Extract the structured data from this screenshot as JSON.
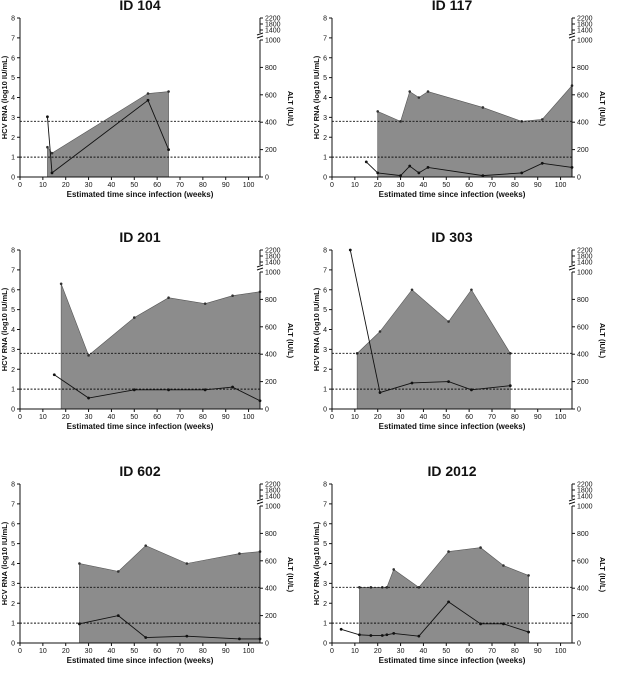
{
  "chart_data": [
    {
      "type": "area",
      "title": "ID 104",
      "xlabel": "Estimated time since infection (weeks)",
      "ylabel_left": "HCV RNA (log10 IU/mL)",
      "ylabel_right": "ALT (IU/L)",
      "xlim": [
        0,
        105
      ],
      "xticks": [
        0,
        10,
        20,
        30,
        40,
        50,
        60,
        70,
        80,
        90,
        100
      ],
      "ylim_left": [
        0,
        8
      ],
      "yticks_left": [
        0,
        1,
        2,
        3,
        4,
        5,
        6,
        7,
        8
      ],
      "yticks_right": [
        0,
        200,
        400,
        600,
        800,
        1000,
        1400,
        1800,
        2200
      ],
      "thresholds_left": [
        2.8,
        1.0
      ],
      "series": [
        {
          "name": "HCV RNA",
          "x": [
            12,
            14,
            56,
            65
          ],
          "y": [
            1.5,
            1.2,
            4.2,
            4.3
          ]
        },
        {
          "name": "ALT",
          "x": [
            12,
            14,
            56,
            65
          ],
          "y": [
            440,
            30,
            560,
            200
          ]
        }
      ]
    },
    {
      "type": "area",
      "title": "ID 117",
      "xlabel": "Estimated time since infection (weeks)",
      "ylabel_left": "HCV RNA (log10 IU/mL)",
      "ylabel_right": "ALT (IU/L)",
      "xlim": [
        0,
        105
      ],
      "xticks": [
        0,
        10,
        20,
        30,
        40,
        50,
        60,
        70,
        80,
        90,
        100
      ],
      "ylim_left": [
        0,
        8
      ],
      "yticks_left": [
        0,
        1,
        2,
        3,
        4,
        5,
        6,
        7,
        8
      ],
      "yticks_right": [
        0,
        200,
        400,
        600,
        800,
        1000,
        1400,
        1800,
        2200
      ],
      "thresholds_left": [
        2.8,
        1.0
      ],
      "series": [
        {
          "name": "HCV RNA",
          "x": [
            20,
            30,
            34,
            38,
            42,
            66,
            83,
            92,
            105
          ],
          "y": [
            3.3,
            2.8,
            4.3,
            4.0,
            4.3,
            3.5,
            2.8,
            2.9,
            4.6
          ]
        },
        {
          "name": "ALT",
          "x": [
            15,
            20,
            30,
            34,
            38,
            42,
            66,
            83,
            92,
            105
          ],
          "y": [
            110,
            30,
            10,
            80,
            30,
            70,
            10,
            30,
            100,
            70
          ]
        }
      ]
    },
    {
      "type": "area",
      "title": "ID 201",
      "xlabel": "Estimated time since infection (weeks)",
      "ylabel_left": "HCV RNA (log10 IU/mL)",
      "ylabel_right": "ALT (IU/L)",
      "xlim": [
        0,
        105
      ],
      "xticks": [
        0,
        10,
        20,
        30,
        40,
        50,
        60,
        70,
        80,
        90,
        100
      ],
      "ylim_left": [
        0,
        8
      ],
      "yticks_left": [
        0,
        1,
        2,
        3,
        4,
        5,
        6,
        7,
        8
      ],
      "yticks_right": [
        0,
        200,
        400,
        600,
        800,
        1000,
        1400,
        1800,
        2200
      ],
      "thresholds_left": [
        2.8,
        1.0
      ],
      "series": [
        {
          "name": "HCV RNA",
          "x": [
            18,
            30,
            50,
            65,
            81,
            93,
            105
          ],
          "y": [
            6.3,
            2.7,
            4.6,
            5.6,
            5.3,
            5.7,
            5.9
          ]
        },
        {
          "name": "ALT",
          "x": [
            15,
            30,
            50,
            65,
            81,
            93,
            105
          ],
          "y": [
            250,
            80,
            140,
            140,
            140,
            160,
            60
          ]
        }
      ]
    },
    {
      "type": "area",
      "title": "ID 303",
      "xlabel": "Estimated time since infection (weeks)",
      "ylabel_left": "HCV RNA (log10 IU/mL)",
      "ylabel_right": "ALT (IU/L)",
      "xlim": [
        0,
        105
      ],
      "xticks": [
        0,
        10,
        20,
        30,
        40,
        50,
        60,
        70,
        80,
        90,
        100
      ],
      "ylim_left": [
        0,
        8
      ],
      "yticks_left": [
        0,
        1,
        2,
        3,
        4,
        5,
        6,
        7,
        8
      ],
      "yticks_right": [
        0,
        200,
        400,
        600,
        800,
        1000,
        1400,
        1800,
        2200
      ],
      "thresholds_left": [
        2.8,
        1.0
      ],
      "series": [
        {
          "name": "HCV RNA",
          "x": [
            11,
            21,
            35,
            51,
            61,
            78
          ],
          "y": [
            2.8,
            3.9,
            6.0,
            4.4,
            6.0,
            2.8
          ]
        },
        {
          "name": "ALT",
          "x": [
            8,
            21,
            35,
            51,
            61,
            78
          ],
          "y": [
            2200,
            120,
            190,
            200,
            140,
            170
          ]
        }
      ]
    },
    {
      "type": "area",
      "title": "ID 602",
      "xlabel": "Estimated time since infection (weeks)",
      "ylabel_left": "HCV RNA (log10 IU/mL)",
      "ylabel_right": "ALT (IU/L)",
      "xlim": [
        0,
        105
      ],
      "xticks": [
        0,
        10,
        20,
        30,
        40,
        50,
        60,
        70,
        80,
        90,
        100
      ],
      "ylim_left": [
        0,
        8
      ],
      "yticks_left": [
        0,
        1,
        2,
        3,
        4,
        5,
        6,
        7,
        8
      ],
      "yticks_right": [
        0,
        200,
        400,
        600,
        800,
        1000,
        1400,
        1800,
        2200
      ],
      "thresholds_left": [
        2.8,
        1.0
      ],
      "series": [
        {
          "name": "HCV RNA",
          "x": [
            26,
            43,
            55,
            73,
            96,
            105
          ],
          "y": [
            4.0,
            3.6,
            4.9,
            4.0,
            4.5,
            4.6
          ]
        },
        {
          "name": "ALT",
          "x": [
            26,
            43,
            55,
            73,
            96,
            105
          ],
          "y": [
            140,
            200,
            40,
            50,
            30,
            30
          ]
        }
      ]
    },
    {
      "type": "area",
      "title": "ID 2012",
      "xlabel": "Estimated time since infection (weeks)",
      "ylabel_left": "HCV RNA (log10 IU/mL)",
      "ylabel_right": "ALT (IU/L)",
      "xlim": [
        0,
        105
      ],
      "xticks": [
        0,
        10,
        20,
        30,
        40,
        50,
        60,
        70,
        80,
        90,
        100
      ],
      "ylim_left": [
        0,
        8
      ],
      "yticks_left": [
        0,
        1,
        2,
        3,
        4,
        5,
        6,
        7,
        8
      ],
      "yticks_right": [
        0,
        200,
        400,
        600,
        800,
        1000,
        1400,
        1800,
        2200
      ],
      "thresholds_left": [
        2.8,
        1.0
      ],
      "series": [
        {
          "name": "HCV RNA",
          "x": [
            12,
            17,
            22,
            24,
            27,
            38,
            51,
            65,
            75,
            86
          ],
          "y": [
            2.8,
            2.8,
            2.8,
            2.8,
            3.7,
            2.8,
            4.6,
            4.8,
            3.9,
            3.4
          ]
        },
        {
          "name": "ALT",
          "x": [
            4,
            12,
            17,
            22,
            24,
            27,
            38,
            51,
            65,
            75,
            86
          ],
          "y": [
            100,
            60,
            55,
            55,
            60,
            70,
            50,
            300,
            140,
            140,
            80
          ]
        }
      ]
    }
  ]
}
